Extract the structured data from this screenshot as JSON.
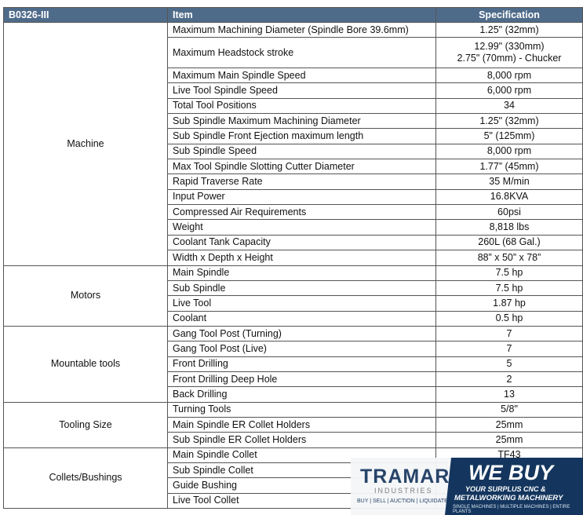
{
  "table": {
    "header": [
      "B0326-III",
      "Item",
      "Specification"
    ],
    "groups": [
      {
        "name": "Machine",
        "rows": [
          {
            "item": "Maximum Machining Diameter (Spindle Bore 39.6mm)",
            "spec": "1.25\" (32mm)"
          },
          {
            "item": "Maximum Headstock stroke",
            "spec": [
              "12.99\" (330mm)",
              "2.75\" (70mm) - Chucker"
            ]
          },
          {
            "item": "Maximum Main Spindle Speed",
            "spec": "8,000 rpm"
          },
          {
            "item": "Live Tool Spindle Speed",
            "spec": "6,000 rpm"
          },
          {
            "item": "Total Tool Positions",
            "spec": "34"
          },
          {
            "item": "Sub Spindle Maximum Machining Diameter",
            "spec": "1.25\" (32mm)"
          },
          {
            "item": "Sub Spindle Front Ejection maximum length",
            "spec": "5\" (125mm)"
          },
          {
            "item": "Sub Spindle Speed",
            "spec": "8,000 rpm"
          },
          {
            "item": "Max Tool Spindle Slotting Cutter Diameter",
            "spec": "1.77” (45mm)"
          },
          {
            "item": "Rapid Traverse Rate",
            "spec": "35 M/min"
          },
          {
            "item": "Input Power",
            "spec": "16.8KVA"
          },
          {
            "item": "Compressed Air Requirements",
            "spec": "60psi"
          },
          {
            "item": "Weight",
            "spec": "8,818 lbs"
          },
          {
            "item": "Coolant Tank Capacity",
            "spec": "260L (68 Gal.)"
          },
          {
            "item": "Width x Depth x Height",
            "spec": "88” x 50” x 78”"
          }
        ]
      },
      {
        "name": "Motors",
        "rows": [
          {
            "item": "Main Spindle",
            "spec": "7.5 hp"
          },
          {
            "item": "Sub Spindle",
            "spec": "7.5 hp"
          },
          {
            "item": "Live Tool",
            "spec": "1.87 hp"
          },
          {
            "item": "Coolant",
            "spec": "0.5 hp"
          }
        ]
      },
      {
        "name": "Mountable tools",
        "rows": [
          {
            "item": "Gang Tool Post (Turning)",
            "spec": "7"
          },
          {
            "item": "Gang Tool Post (Live)",
            "spec": "7"
          },
          {
            "item": "Front Drilling",
            "spec": "5"
          },
          {
            "item": "Front Drilling Deep Hole",
            "spec": "2"
          },
          {
            "item": "Back Drilling",
            "spec": "13"
          }
        ]
      },
      {
        "name": "Tooling Size",
        "rows": [
          {
            "item": "Turning Tools",
            "spec": "5/8\""
          },
          {
            "item": "Main Spindle ER Collet Holders",
            "spec": "25mm"
          },
          {
            "item": "Sub Spindle ER Collet Holders",
            "spec": "25mm"
          }
        ]
      },
      {
        "name": "Collets/Bushings",
        "rows": [
          {
            "item": "Main Spindle Collet",
            "spec": "TF43"
          },
          {
            "item": "Sub Spindle Collet"
          },
          {
            "item": "Guide Bushing"
          },
          {
            "item": "Live Tool Collet"
          }
        ]
      }
    ]
  },
  "ad": {
    "brand": "TRAMAR",
    "brand_sub": "INDUSTRIES",
    "services": "BUY | SELL | AUCTION | LIQUIDATE",
    "headline": "WE BUY",
    "line1": "YOUR SURPLUS CNC &",
    "line2": "METALWORKING MACHINERY",
    "footer": "SINGLE MACHINES | MULTIPLE MACHINES | ENTIRE PLANTS"
  }
}
